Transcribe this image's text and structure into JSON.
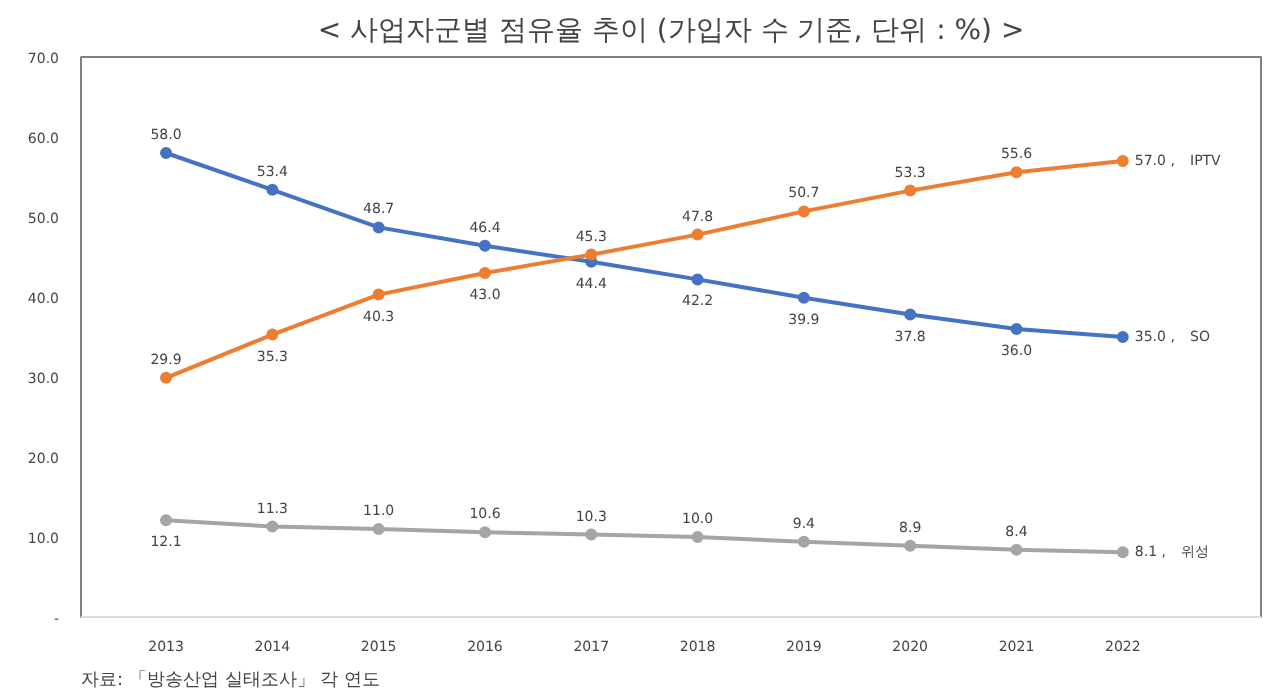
{
  "chart_data": {
    "type": "line",
    "title": "< 사업자군별 점유율 추이 (가입자 수 기준, 단위 : %) >",
    "categories": [
      "2013",
      "2014",
      "2015",
      "2016",
      "2017",
      "2018",
      "2019",
      "2020",
      "2021",
      "2022"
    ],
    "series": [
      {
        "name": "SO",
        "color": "#4472c4",
        "values": [
          58.0,
          53.4,
          48.7,
          46.4,
          44.4,
          42.2,
          39.9,
          37.8,
          36.0,
          35.0
        ],
        "value_labels": [
          "58.0",
          "53.4",
          "48.7",
          "46.4",
          "44.4",
          "42.2",
          "39.9",
          "37.8",
          "36.0",
          "35.0 ,"
        ]
      },
      {
        "name": "IPTV",
        "color": "#ed7d31",
        "values": [
          29.9,
          35.3,
          40.3,
          43.0,
          45.3,
          47.8,
          50.7,
          53.3,
          55.6,
          57.0
        ],
        "value_labels": [
          "29.9",
          "35.3",
          "40.3",
          "43.0",
          "45.3",
          "47.8",
          "50.7",
          "53.3",
          "55.6",
          "57.0 ,"
        ]
      },
      {
        "name": "위성",
        "color": "#a5a5a5",
        "values": [
          12.1,
          11.3,
          11.0,
          10.6,
          10.3,
          10.0,
          9.4,
          8.9,
          8.4,
          8.1
        ],
        "value_labels": [
          "12.1",
          "11.3",
          "11.0",
          "10.6",
          "10.3",
          "10.0",
          "9.4",
          "8.9",
          "8.4",
          "8.1 ,"
        ]
      }
    ],
    "ylim": [
      0,
      70
    ],
    "yticks": [
      {
        "value": 0,
        "label": "-"
      },
      {
        "value": 10,
        "label": "10.0"
      },
      {
        "value": 20,
        "label": "20.0"
      },
      {
        "value": 30,
        "label": "30.0"
      },
      {
        "value": 40,
        "label": "40.0"
      },
      {
        "value": 50,
        "label": "50.0"
      },
      {
        "value": 60,
        "label": "60.0"
      },
      {
        "value": 70,
        "label": "70.0"
      }
    ],
    "marker": "circle",
    "line_style": "solid",
    "grid": false,
    "annotations": [
      "자료: 「방송산업 실태조사」 각 연도"
    ]
  }
}
